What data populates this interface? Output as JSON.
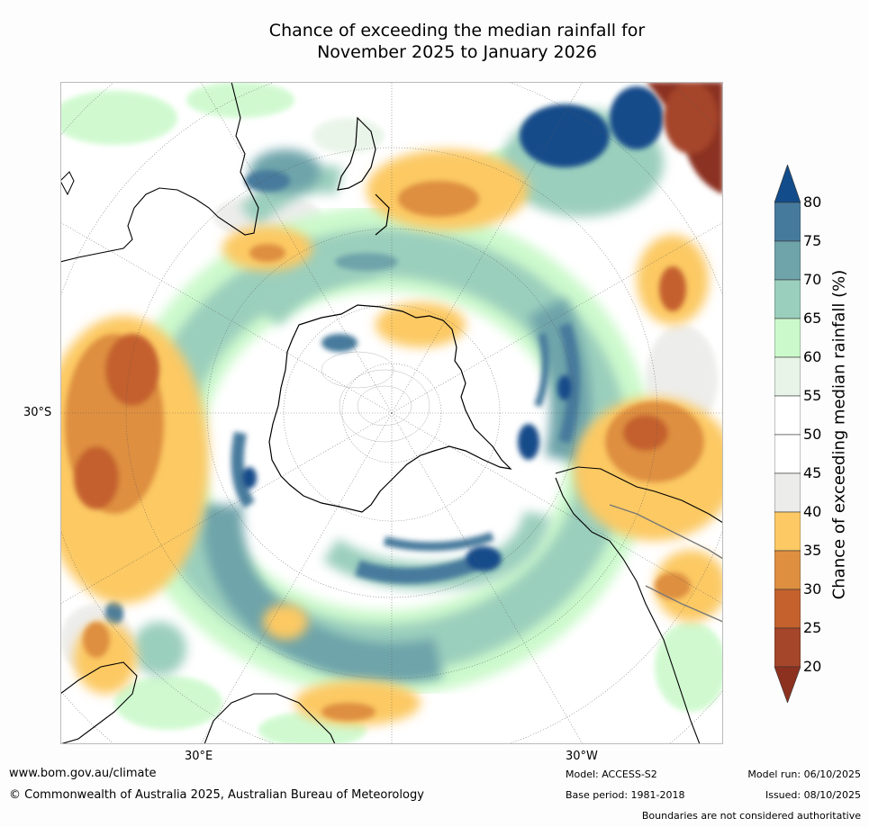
{
  "title_line1": "Chance of exceeding the median rainfall for",
  "title_line2": "November 2025 to January 2026",
  "axis_labels": {
    "lon_left": "30°E",
    "lon_right": "30°W",
    "lat": "30°S"
  },
  "colorbar": {
    "title": "Chance of exceeding median rainfall (%)",
    "ticks": [
      "80",
      "75",
      "70",
      "65",
      "60",
      "55",
      "50",
      "45",
      "40",
      "35",
      "30",
      "25",
      "20"
    ],
    "colors": [
      "#124c8a",
      "#467a9c",
      "#6ea4aa",
      "#9bcfbd",
      "#ccf9cc",
      "#e8f4e8",
      "#ffffff",
      "#ffffff",
      "#ececea",
      "#fcc964",
      "#de8f40",
      "#c4612d",
      "#a5452a",
      "#8c3120"
    ]
  },
  "footer": {
    "website": "www.bom.gov.au/climate",
    "copyright": "© Commonwealth of Australia 2025, Australian Bureau of Meteorology",
    "model": "Model: ACCESS-S2",
    "base_period": "Base period: 1981-2018",
    "model_run": "Model run: 06/10/2025",
    "issued": "Issued: 08/10/2025",
    "boundaries": "Boundaries are not considered authoritative"
  }
}
